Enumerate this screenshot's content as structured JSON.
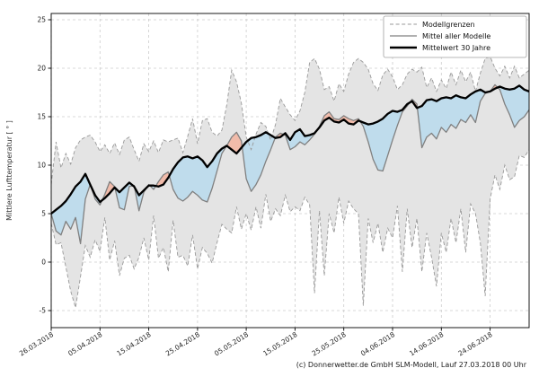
{
  "footer": {
    "copyright": "(c) Donnerwetter.de GmbH SLM-Modell, Lauf 27.03.2018 00 Uhr"
  },
  "chart_data": {
    "type": "line",
    "title": "",
    "xlabel": "",
    "ylabel": "Mittlere Lufttemperatur [ ° ]",
    "ylim": [
      -6.8,
      25.6
    ],
    "yticks": [
      -5,
      0,
      5,
      10,
      15,
      20,
      25
    ],
    "grid": true,
    "n_points": 99,
    "x_start_date": "26.03.2018",
    "x_ticks": [
      {
        "label": "26.03.2018",
        "day": 0
      },
      {
        "label": "05.04.2018",
        "day": 10
      },
      {
        "label": "15.04.2018",
        "day": 20
      },
      {
        "label": "25.04.2018",
        "day": 30
      },
      {
        "label": "05.05.2018",
        "day": 40
      },
      {
        "label": "15.05.2018",
        "day": 50
      },
      {
        "label": "25.05.2018",
        "day": 60
      },
      {
        "label": "04.06.2018",
        "day": 70
      },
      {
        "label": "14.06.2018",
        "day": 80
      },
      {
        "label": "24.06.2018",
        "day": 90
      }
    ],
    "legend": {
      "position": "upper right",
      "entries": [
        "Modellgrenzen",
        "Mittel aller Modelle",
        "Mittelwert 30 Jahre"
      ]
    },
    "colors": {
      "band_fill": "#e4e4e4",
      "band_edge": "#999999",
      "model_mean_line": "#808080",
      "climate_mean_line": "#000000",
      "warmer_fill": "#f1bbaa",
      "colder_fill": "#bfdcec",
      "grid": "#cccccc"
    },
    "band": {
      "name": "Modellgrenzen",
      "upper": [
        8.0,
        12.4,
        9.7,
        11.2,
        10.1,
        11.8,
        12.6,
        12.9,
        13.1,
        12.4,
        11.4,
        12.1,
        11.2,
        12.3,
        11.1,
        12.6,
        12.9,
        11.6,
        10.4,
        12.2,
        11.4,
        12.5,
        11.3,
        12.6,
        12.4,
        12.6,
        12.8,
        11.3,
        13.0,
        14.8,
        12.2,
        14.6,
        14.8,
        13.4,
        13.0,
        13.6,
        16.2,
        19.8,
        18.6,
        16.4,
        12.9,
        11.6,
        13.2,
        14.4,
        14.0,
        12.6,
        14.2,
        16.9,
        16.0,
        15.2,
        14.6,
        15.6,
        17.5,
        20.6,
        21.0,
        19.9,
        17.8,
        18.1,
        16.6,
        18.4,
        17.6,
        19.4,
        20.6,
        21.0,
        20.6,
        19.9,
        18.4,
        17.7,
        19.3,
        19.9,
        19.1,
        17.8,
        18.3,
        19.4,
        19.9,
        19.6,
        20.1,
        18.0,
        19.0,
        17.6,
        18.8,
        17.9,
        19.6,
        18.3,
        19.8,
        18.6,
        19.6,
        17.6,
        19.5,
        21.0,
        21.2,
        20.0,
        19.2,
        20.2,
        19.0,
        20.2,
        19.0,
        19.4,
        19.8
      ],
      "lower": [
        4.0,
        1.8,
        2.0,
        -0.5,
        -3.0,
        -4.7,
        -1.5,
        1.7,
        0.5,
        2.3,
        1.1,
        4.6,
        0.2,
        2.2,
        -1.4,
        0.4,
        0.7,
        -0.7,
        0.5,
        2.5,
        0.2,
        4.8,
        0.4,
        1.5,
        -1.0,
        4.3,
        0.5,
        0.7,
        -0.4,
        2.8,
        -0.7,
        1.5,
        0.9,
        -0.1,
        2.0,
        3.9,
        3.4,
        3.0,
        5.7,
        3.4,
        5.0,
        3.3,
        5.7,
        3.5,
        7.0,
        4.2,
        5.5,
        4.8,
        6.9,
        5.2,
        5.7,
        5.3,
        6.7,
        5.9,
        -3.2,
        5.3,
        -1.4,
        5.0,
        3.0,
        6.7,
        4.0,
        6.3,
        5.5,
        5.0,
        -4.5,
        4.5,
        2.0,
        4.0,
        1.0,
        3.5,
        2.5,
        5.8,
        -1.0,
        5.5,
        1.5,
        4.5,
        -1.0,
        3.0,
        0.5,
        -2.5,
        3.0,
        1.0,
        4.5,
        2.0,
        5.5,
        1.0,
        6.0,
        5.0,
        2.0,
        -3.5,
        6.5,
        9.0,
        7.5,
        10.0,
        8.5,
        8.8,
        11.0,
        10.8,
        11.6
      ]
    },
    "series": [
      {
        "name": "Mittel aller Modelle",
        "values": [
          5.0,
          3.2,
          2.8,
          4.2,
          3.4,
          4.6,
          1.9,
          6.5,
          8.0,
          6.5,
          5.9,
          7.0,
          8.3,
          7.8,
          5.6,
          5.4,
          7.8,
          7.9,
          5.3,
          7.2,
          8.0,
          7.5,
          8.3,
          9.0,
          9.3,
          7.5,
          6.6,
          6.3,
          6.7,
          7.3,
          6.9,
          6.4,
          6.2,
          7.6,
          9.4,
          11.2,
          12.0,
          12.9,
          13.4,
          12.5,
          8.6,
          7.3,
          8.0,
          9.0,
          10.4,
          11.6,
          12.9,
          13.3,
          13.1,
          11.6,
          11.9,
          12.4,
          12.1,
          12.6,
          13.2,
          14.0,
          15.1,
          15.5,
          14.8,
          14.7,
          15.1,
          14.8,
          14.6,
          14.8,
          14.0,
          12.4,
          10.6,
          9.5,
          9.4,
          11.0,
          12.6,
          14.1,
          15.5,
          16.1,
          16.8,
          16.3,
          11.8,
          12.9,
          13.3,
          12.7,
          13.9,
          13.4,
          14.2,
          13.8,
          14.7,
          14.4,
          15.2,
          14.4,
          16.6,
          17.4,
          17.6,
          18.3,
          17.8,
          16.3,
          15.2,
          13.9,
          14.6,
          15.0,
          15.7
        ]
      },
      {
        "name": "Mittelwert 30 Jahre",
        "values": [
          5.0,
          5.4,
          5.8,
          6.3,
          7.0,
          7.8,
          8.3,
          9.1,
          8.0,
          6.9,
          6.2,
          6.6,
          7.1,
          7.7,
          7.2,
          7.7,
          8.2,
          7.8,
          6.9,
          7.4,
          7.9,
          7.9,
          7.8,
          8.0,
          8.7,
          9.6,
          10.3,
          10.8,
          10.9,
          10.7,
          10.9,
          10.5,
          9.8,
          10.4,
          11.2,
          11.7,
          12.0,
          11.6,
          11.2,
          11.8,
          12.4,
          12.8,
          12.9,
          13.1,
          13.4,
          13.1,
          12.8,
          12.9,
          13.3,
          12.6,
          13.4,
          13.7,
          13.0,
          13.1,
          13.3,
          13.9,
          14.6,
          14.9,
          14.5,
          14.4,
          14.7,
          14.3,
          14.2,
          14.6,
          14.4,
          14.2,
          14.3,
          14.5,
          14.8,
          15.3,
          15.6,
          15.5,
          15.7,
          16.3,
          16.6,
          15.9,
          16.1,
          16.7,
          16.8,
          16.6,
          16.9,
          17.0,
          16.9,
          17.2,
          17.0,
          16.9,
          17.3,
          17.6,
          17.8,
          17.5,
          17.6,
          17.9,
          18.1,
          17.9,
          17.8,
          17.9,
          18.2,
          17.8,
          17.6
        ]
      }
    ]
  }
}
